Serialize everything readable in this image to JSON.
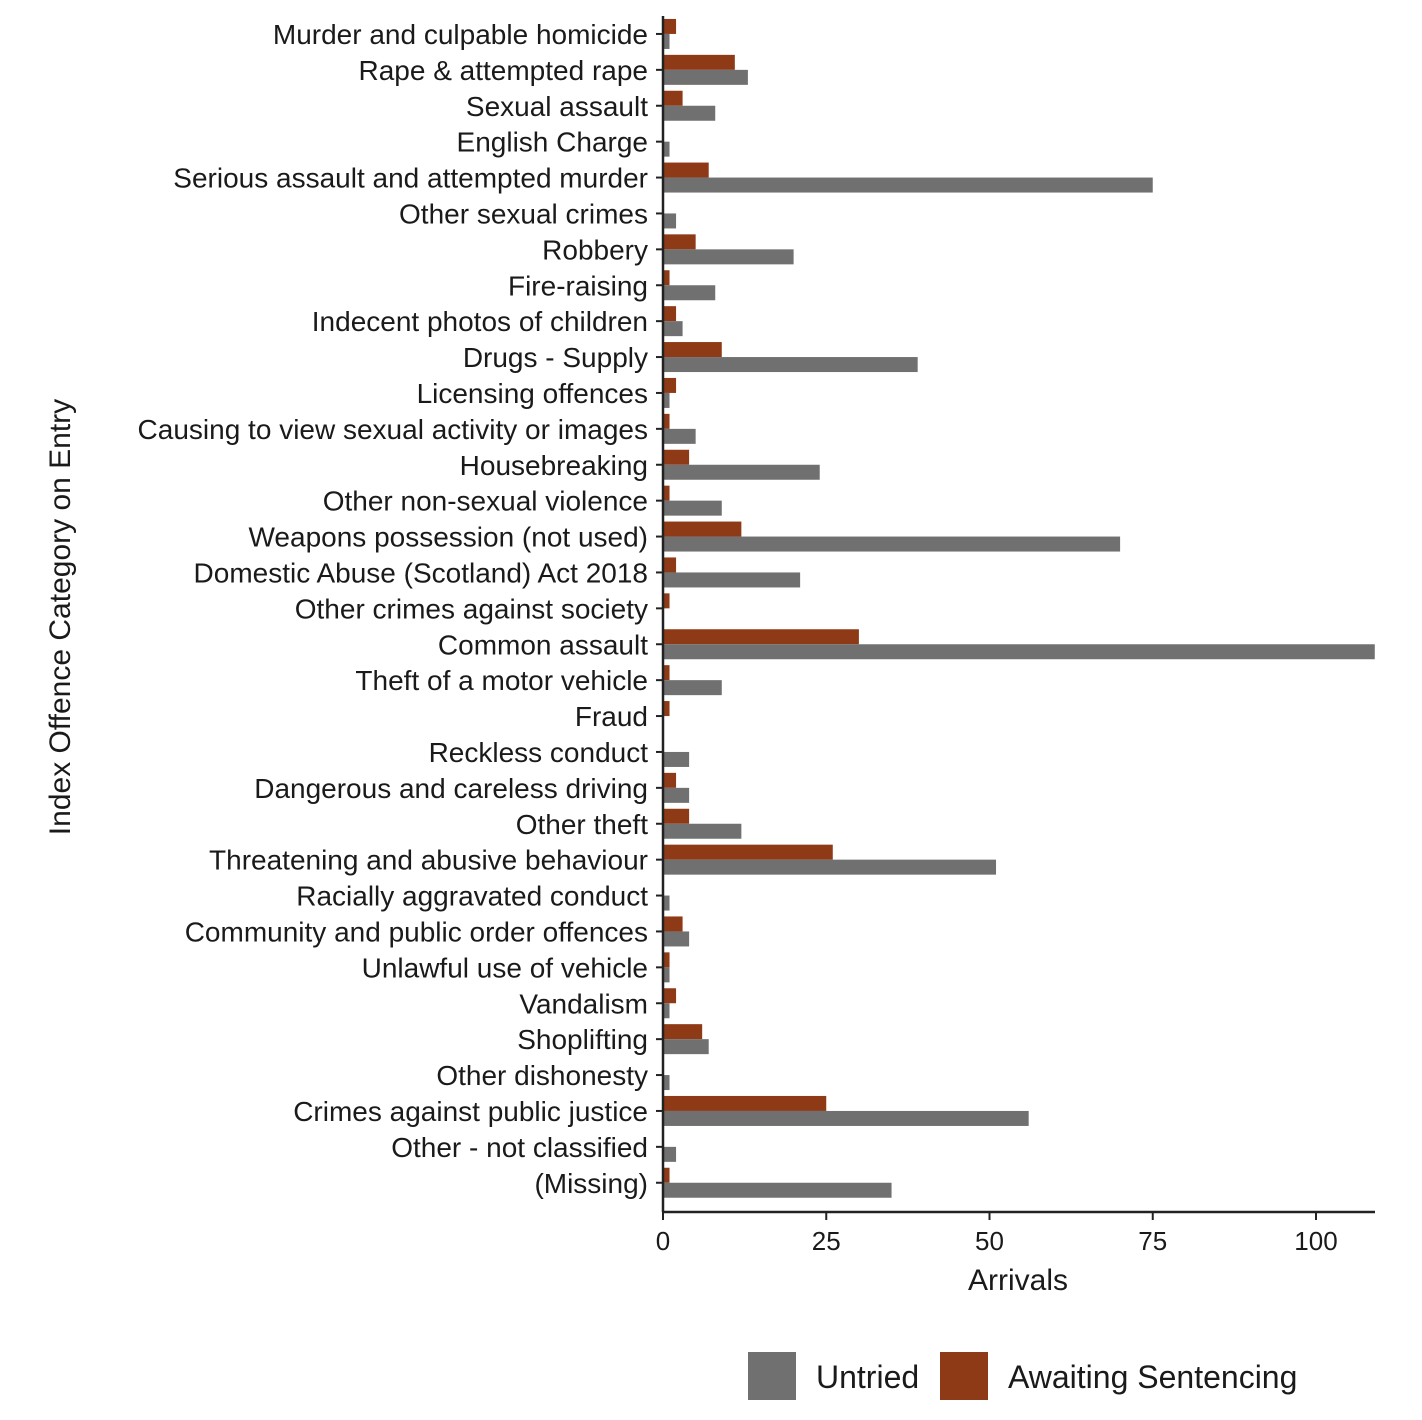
{
  "chart_data": {
    "type": "bar",
    "orientation": "horizontal",
    "xlabel": "Arrivals",
    "ylabel": "Index Offence Category on Entry",
    "xlim": [
      0,
      109
    ],
    "xticks": [
      0,
      25,
      50,
      75,
      100
    ],
    "grid": false,
    "legend_position": "bottom-right",
    "categories": [
      "Murder and culpable homicide",
      "Rape & attempted rape",
      "Sexual assault",
      "English Charge",
      "Serious assault and attempted murder",
      "Other sexual crimes",
      "Robbery",
      "Fire-raising",
      "Indecent photos of children",
      "Drugs - Supply",
      "Licensing offences",
      "Causing to view sexual activity or images",
      "Housebreaking",
      "Other non-sexual violence",
      "Weapons possession (not used)",
      "Domestic Abuse (Scotland) Act 2018",
      "Other crimes against society",
      "Common assault",
      "Theft of a motor vehicle",
      "Fraud",
      "Reckless conduct",
      "Dangerous and careless driving",
      "Other theft",
      "Threatening and abusive behaviour",
      "Racially aggravated conduct",
      "Community and public order offences",
      "Unlawful use of vehicle",
      "Vandalism",
      "Shoplifting",
      "Other dishonesty",
      "Crimes against public justice",
      "Other - not classified",
      "(Missing)"
    ],
    "series": [
      {
        "name": "Awaiting Sentencing",
        "color": "#8f3a17",
        "values": [
          2,
          11,
          3,
          0,
          7,
          0,
          5,
          1,
          2,
          9,
          2,
          1,
          4,
          1,
          12,
          2,
          1,
          30,
          1,
          1,
          0,
          2,
          4,
          26,
          0,
          3,
          1,
          2,
          6,
          0,
          25,
          0,
          1
        ]
      },
      {
        "name": "Untried",
        "color": "#707070",
        "values": [
          1,
          13,
          8,
          1,
          75,
          2,
          20,
          8,
          3,
          39,
          1,
          5,
          24,
          9,
          70,
          21,
          0,
          109,
          9,
          0,
          4,
          4,
          12,
          51,
          1,
          4,
          1,
          1,
          7,
          1,
          56,
          2,
          35
        ]
      }
    ],
    "legend": [
      "Untried",
      "Awaiting Sentencing"
    ]
  }
}
